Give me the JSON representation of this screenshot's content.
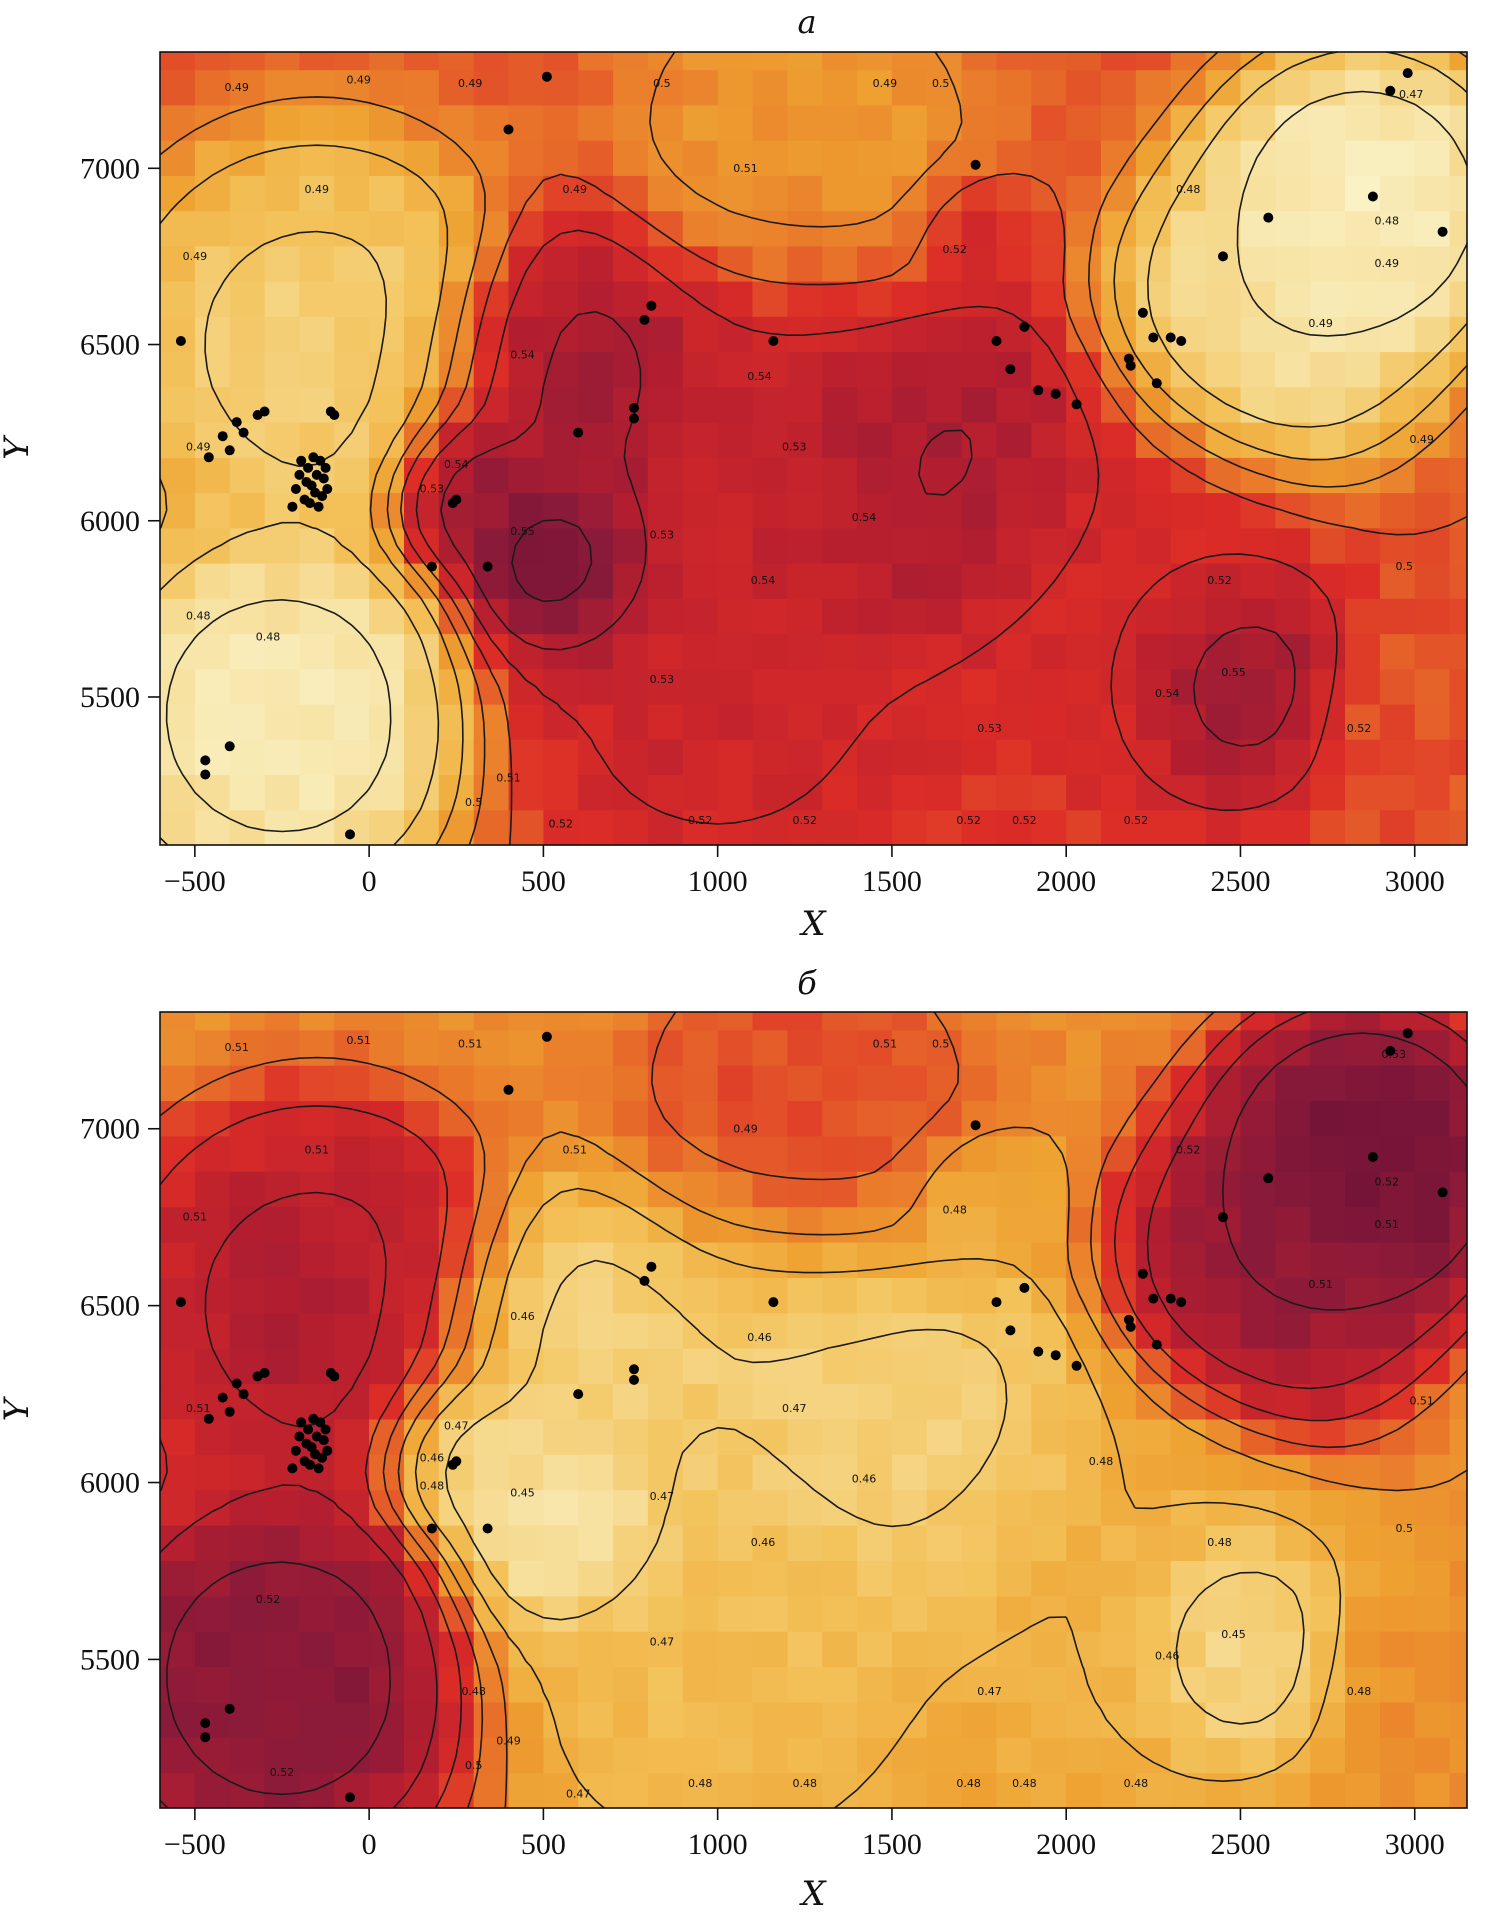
{
  "figure": {
    "panels": [
      {
        "panel_label": "а"
      },
      {
        "panel_label": "б"
      }
    ]
  },
  "chart_data": [
    {
      "type": "heatmap",
      "title": "а",
      "xlabel": "X",
      "ylabel": "Y",
      "xlim": [
        -600,
        3150
      ],
      "ylim": [
        5080,
        7330
      ],
      "x_ticks": [
        -500,
        0,
        500,
        1000,
        1500,
        2000,
        2500,
        3000
      ],
      "y_ticks": [
        5500,
        6000,
        6500,
        7000
      ],
      "colormap": [
        "#fbf6cf",
        "#f6df9b",
        "#f3c25a",
        "#eea231",
        "#e8722a",
        "#dc2c27",
        "#b71f2f",
        "#8a1a39",
        "#6c1137"
      ],
      "value_range": [
        0.47,
        0.56
      ],
      "hotspots": [
        {
          "x": 570,
          "y": 5880,
          "value": 0.56,
          "radius": 200
        },
        {
          "x": 600,
          "y": 6380,
          "value": 0.545,
          "radius": 300
        },
        {
          "x": 290,
          "y": 6080,
          "value": 0.55,
          "radius": 160
        },
        {
          "x": 1200,
          "y": 6200,
          "value": 0.535,
          "radius": 420
        },
        {
          "x": 1620,
          "y": 6100,
          "value": 0.545,
          "radius": 320
        },
        {
          "x": 2450,
          "y": 5560,
          "value": 0.55,
          "radius": 220
        },
        {
          "x": 1750,
          "y": 6780,
          "value": 0.53,
          "radius": 140
        },
        {
          "x": 1000,
          "y": 5550,
          "value": 0.532,
          "radius": 420
        },
        {
          "x": 2100,
          "y": 5700,
          "value": 0.528,
          "radius": 420
        },
        {
          "x": 3050,
          "y": 5450,
          "value": 0.52,
          "radius": 220
        },
        {
          "x": -250,
          "y": 5450,
          "value": 0.472,
          "radius": 350
        },
        {
          "x": -150,
          "y": 6500,
          "value": 0.485,
          "radius": 380
        },
        {
          "x": 2850,
          "y": 6900,
          "value": 0.47,
          "radius": 300
        },
        {
          "x": 2600,
          "y": 6600,
          "value": 0.478,
          "radius": 300
        },
        {
          "x": 1250,
          "y": 7050,
          "value": 0.505,
          "radius": 350
        }
      ],
      "contour_levels": [
        "0.47",
        "0.48",
        "0.49",
        "0.5",
        "0.51",
        "0.52",
        "0.53",
        "0.54",
        "0.55"
      ],
      "contour_labels": [
        {
          "text": "0.49",
          "x": -380,
          "y": 7220
        },
        {
          "text": "0.49",
          "x": -30,
          "y": 7240
        },
        {
          "text": "0.49",
          "x": 290,
          "y": 7230
        },
        {
          "text": "0.5",
          "x": 840,
          "y": 7230
        },
        {
          "text": "0.49",
          "x": 1480,
          "y": 7230
        },
        {
          "text": "0.5",
          "x": 1640,
          "y": 7230
        },
        {
          "text": "0.47",
          "x": 2990,
          "y": 7200
        },
        {
          "text": "0.49",
          "x": -150,
          "y": 6930
        },
        {
          "text": "0.49",
          "x": 590,
          "y": 6930
        },
        {
          "text": "0.51",
          "x": 1080,
          "y": 6990
        },
        {
          "text": "0.48",
          "x": 2350,
          "y": 6930
        },
        {
          "text": "0.48",
          "x": 2920,
          "y": 6840
        },
        {
          "text": "0.49",
          "x": -500,
          "y": 6740
        },
        {
          "text": "0.52",
          "x": 1680,
          "y": 6760
        },
        {
          "text": "0.49",
          "x": 2920,
          "y": 6720
        },
        {
          "text": "0.49",
          "x": 2730,
          "y": 6550
        },
        {
          "text": "0.54",
          "x": 440,
          "y": 6460
        },
        {
          "text": "0.54",
          "x": 1120,
          "y": 6400
        },
        {
          "text": "0.49",
          "x": -490,
          "y": 6200
        },
        {
          "text": "0.53",
          "x": 1220,
          "y": 6200
        },
        {
          "text": "0.49",
          "x": 3020,
          "y": 6220
        },
        {
          "text": "0.54",
          "x": 250,
          "y": 6150
        },
        {
          "text": "0.53",
          "x": 180,
          "y": 6080
        },
        {
          "text": "0.54",
          "x": 1420,
          "y": 6000
        },
        {
          "text": "0.55",
          "x": 440,
          "y": 5960
        },
        {
          "text": "0.53",
          "x": 840,
          "y": 5950
        },
        {
          "text": "0.54",
          "x": 1130,
          "y": 5820
        },
        {
          "text": "0.5",
          "x": 2970,
          "y": 5860
        },
        {
          "text": "0.52",
          "x": 2440,
          "y": 5820
        },
        {
          "text": "0.48",
          "x": -490,
          "y": 5720
        },
        {
          "text": "0.48",
          "x": -290,
          "y": 5660
        },
        {
          "text": "0.53",
          "x": 840,
          "y": 5540
        },
        {
          "text": "0.55",
          "x": 2480,
          "y": 5560
        },
        {
          "text": "0.54",
          "x": 2290,
          "y": 5500
        },
        {
          "text": "0.52",
          "x": 2840,
          "y": 5400
        },
        {
          "text": "0.53",
          "x": 1780,
          "y": 5400
        },
        {
          "text": "0.51",
          "x": 400,
          "y": 5260
        },
        {
          "text": "0.5",
          "x": 300,
          "y": 5190
        },
        {
          "text": "0.52",
          "x": 550,
          "y": 5130
        },
        {
          "text": "0.52",
          "x": 950,
          "y": 5140
        },
        {
          "text": "0.52",
          "x": 1250,
          "y": 5140
        },
        {
          "text": "0.52",
          "x": 1720,
          "y": 5140
        },
        {
          "text": "0.52",
          "x": 1880,
          "y": 5140
        },
        {
          "text": "0.52",
          "x": 2200,
          "y": 5140
        }
      ],
      "sample_points": []
    },
    {
      "type": "heatmap",
      "title": "б",
      "xlabel": "X",
      "ylabel": "Y",
      "xlim": [
        -600,
        3150
      ],
      "ylim": [
        5080,
        7330
      ],
      "x_ticks": [
        -500,
        0,
        500,
        1000,
        1500,
        2000,
        2500,
        3000
      ],
      "y_ticks": [
        5500,
        6000,
        6500,
        7000
      ],
      "colormap": [
        "#fbf6cf",
        "#f6df9b",
        "#f3c25a",
        "#eea231",
        "#e8722a",
        "#dc2c27",
        "#b71f2f",
        "#8a1a39",
        "#6c1137"
      ],
      "value_range": [
        0.44,
        0.535
      ],
      "hotspots": [
        {
          "x": 570,
          "y": 5880,
          "value": 0.445,
          "radius": 220
        },
        {
          "x": 600,
          "y": 6380,
          "value": 0.455,
          "radius": 300
        },
        {
          "x": 290,
          "y": 6080,
          "value": 0.452,
          "radius": 170
        },
        {
          "x": 1200,
          "y": 6200,
          "value": 0.458,
          "radius": 420
        },
        {
          "x": 1620,
          "y": 6100,
          "value": 0.455,
          "radius": 320
        },
        {
          "x": 2450,
          "y": 5560,
          "value": 0.448,
          "radius": 220
        },
        {
          "x": 1750,
          "y": 6780,
          "value": 0.47,
          "radius": 150
        },
        {
          "x": 1000,
          "y": 5550,
          "value": 0.465,
          "radius": 420
        },
        {
          "x": 2100,
          "y": 5700,
          "value": 0.47,
          "radius": 420
        },
        {
          "x": 3050,
          "y": 5450,
          "value": 0.48,
          "radius": 220
        },
        {
          "x": -250,
          "y": 5450,
          "value": 0.528,
          "radius": 350
        },
        {
          "x": -150,
          "y": 6500,
          "value": 0.515,
          "radius": 380
        },
        {
          "x": 2850,
          "y": 6900,
          "value": 0.535,
          "radius": 300
        },
        {
          "x": 2600,
          "y": 6600,
          "value": 0.522,
          "radius": 300
        },
        {
          "x": 1250,
          "y": 7050,
          "value": 0.495,
          "radius": 350
        }
      ],
      "contour_levels": [
        "0.45",
        "0.46",
        "0.47",
        "0.48",
        "0.49",
        "0.5",
        "0.51",
        "0.52",
        "0.53"
      ],
      "contour_labels": [
        {
          "text": "0.51",
          "x": -380,
          "y": 7220
        },
        {
          "text": "0.51",
          "x": -30,
          "y": 7240
        },
        {
          "text": "0.51",
          "x": 290,
          "y": 7230
        },
        {
          "text": "0.51",
          "x": 1480,
          "y": 7230
        },
        {
          "text": "0.5",
          "x": 1640,
          "y": 7230
        },
        {
          "text": "0.53",
          "x": 2940,
          "y": 7200
        },
        {
          "text": "0.51",
          "x": -150,
          "y": 6930
        },
        {
          "text": "0.51",
          "x": 590,
          "y": 6930
        },
        {
          "text": "0.49",
          "x": 1080,
          "y": 6990
        },
        {
          "text": "0.52",
          "x": 2350,
          "y": 6930
        },
        {
          "text": "0.52",
          "x": 2920,
          "y": 6840
        },
        {
          "text": "0.51",
          "x": -500,
          "y": 6740
        },
        {
          "text": "0.48",
          "x": 1680,
          "y": 6760
        },
        {
          "text": "0.51",
          "x": 2920,
          "y": 6720
        },
        {
          "text": "0.51",
          "x": 2730,
          "y": 6550
        },
        {
          "text": "0.46",
          "x": 440,
          "y": 6460
        },
        {
          "text": "0.46",
          "x": 1120,
          "y": 6400
        },
        {
          "text": "0.51",
          "x": -490,
          "y": 6200
        },
        {
          "text": "0.47",
          "x": 1220,
          "y": 6200
        },
        {
          "text": "0.51",
          "x": 3020,
          "y": 6220
        },
        {
          "text": "0.47",
          "x": 250,
          "y": 6150
        },
        {
          "text": "0.46",
          "x": 180,
          "y": 6060
        },
        {
          "text": "0.48",
          "x": 180,
          "y": 5980
        },
        {
          "text": "0.46",
          "x": 1420,
          "y": 6000
        },
        {
          "text": "0.45",
          "x": 440,
          "y": 5960
        },
        {
          "text": "0.47",
          "x": 840,
          "y": 5950
        },
        {
          "text": "0.46",
          "x": 1130,
          "y": 5820
        },
        {
          "text": "0.48",
          "x": 2100,
          "y": 6050
        },
        {
          "text": "0.5",
          "x": 2970,
          "y": 5860
        },
        {
          "text": "0.48",
          "x": 2440,
          "y": 5820
        },
        {
          "text": "0.52",
          "x": -290,
          "y": 5660
        },
        {
          "text": "0.47",
          "x": 840,
          "y": 5540
        },
        {
          "text": "0.45",
          "x": 2480,
          "y": 5560
        },
        {
          "text": "0.46",
          "x": 2290,
          "y": 5500
        },
        {
          "text": "0.48",
          "x": 2840,
          "y": 5400
        },
        {
          "text": "0.47",
          "x": 1780,
          "y": 5400
        },
        {
          "text": "0.49",
          "x": 400,
          "y": 5260
        },
        {
          "text": "0.48",
          "x": 300,
          "y": 5400
        },
        {
          "text": "0.5",
          "x": 300,
          "y": 5190
        },
        {
          "text": "0.52",
          "x": -250,
          "y": 5170
        },
        {
          "text": "0.47",
          "x": 600,
          "y": 5110
        },
        {
          "text": "0.48",
          "x": 950,
          "y": 5140
        },
        {
          "text": "0.48",
          "x": 1250,
          "y": 5140
        },
        {
          "text": "0.48",
          "x": 1720,
          "y": 5140
        },
        {
          "text": "0.48",
          "x": 1880,
          "y": 5140
        },
        {
          "text": "0.48",
          "x": 2200,
          "y": 5140
        }
      ],
      "sample_points": []
    }
  ],
  "sample_points": [
    [
      -540,
      6510
    ],
    [
      -460,
      6180
    ],
    [
      -420,
      6240
    ],
    [
      -400,
      6200
    ],
    [
      -380,
      6280
    ],
    [
      -360,
      6250
    ],
    [
      -320,
      6300
    ],
    [
      -300,
      6310
    ],
    [
      -220,
      6040
    ],
    [
      -210,
      6090
    ],
    [
      -200,
      6130
    ],
    [
      -195,
      6170
    ],
    [
      -185,
      6060
    ],
    [
      -180,
      6110
    ],
    [
      -175,
      6150
    ],
    [
      -170,
      6050
    ],
    [
      -165,
      6100
    ],
    [
      -160,
      6180
    ],
    [
      -155,
      6080
    ],
    [
      -150,
      6130
    ],
    [
      -145,
      6040
    ],
    [
      -140,
      6170
    ],
    [
      -135,
      6070
    ],
    [
      -130,
      6120
    ],
    [
      -125,
      6150
    ],
    [
      -120,
      6090
    ],
    [
      -110,
      6310
    ],
    [
      -100,
      6300
    ],
    [
      -470,
      5320
    ],
    [
      -470,
      5280
    ],
    [
      -400,
      5360
    ],
    [
      -55,
      5110
    ],
    [
      180,
      5870
    ],
    [
      240,
      6050
    ],
    [
      250,
      6060
    ],
    [
      340,
      5870
    ],
    [
      400,
      7110
    ],
    [
      510,
      7260
    ],
    [
      600,
      6250
    ],
    [
      760,
      6320
    ],
    [
      760,
      6290
    ],
    [
      790,
      6570
    ],
    [
      810,
      6610
    ],
    [
      1160,
      6510
    ],
    [
      1740,
      7010
    ],
    [
      1800,
      6510
    ],
    [
      1840,
      6430
    ],
    [
      1880,
      6550
    ],
    [
      1920,
      6370
    ],
    [
      1970,
      6360
    ],
    [
      2030,
      6330
    ],
    [
      2180,
      6460
    ],
    [
      2185,
      6440
    ],
    [
      2220,
      6590
    ],
    [
      2250,
      6520
    ],
    [
      2260,
      6390
    ],
    [
      2300,
      6520
    ],
    [
      2330,
      6510
    ],
    [
      2450,
      6750
    ],
    [
      2580,
      6860
    ],
    [
      2880,
      6920
    ],
    [
      2930,
      7220
    ],
    [
      2980,
      7270
    ],
    [
      3080,
      6820
    ]
  ]
}
